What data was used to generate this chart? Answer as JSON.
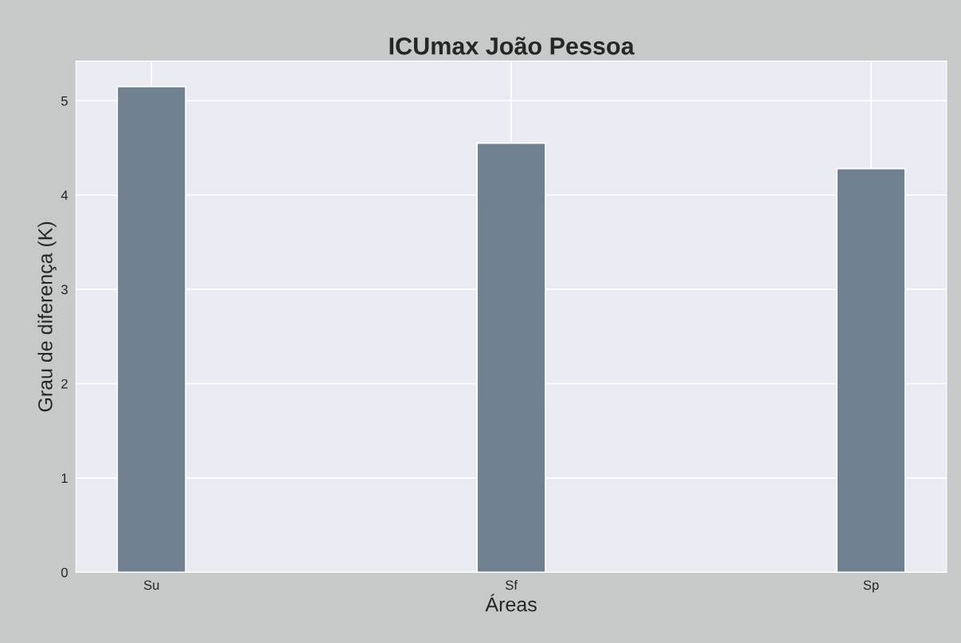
{
  "chart_data": {
    "type": "bar",
    "title": "ICUmax João Pessoa",
    "xlabel": "Áreas",
    "ylabel": "Grau de diferença (K)",
    "categories": [
      "Su",
      "Sf",
      "Sp"
    ],
    "values": [
      5.15,
      4.55,
      4.28
    ],
    "color": "#708090",
    "ylim": [
      0,
      5.42
    ],
    "yticks": [
      0,
      1,
      2,
      3,
      4,
      5
    ],
    "grid": true
  }
}
